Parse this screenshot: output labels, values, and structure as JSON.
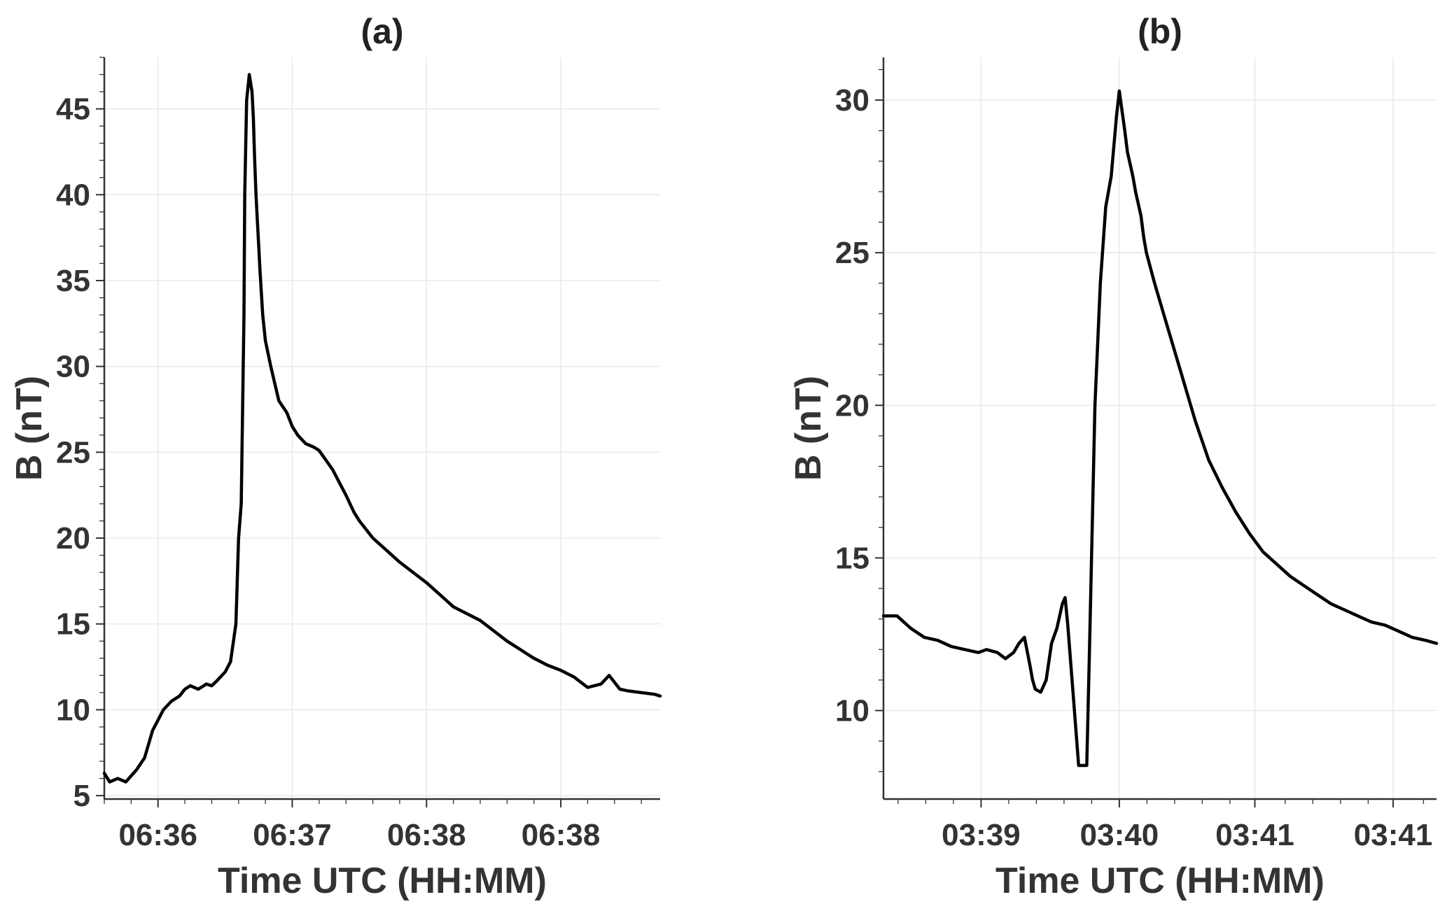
{
  "chart_data": [
    {
      "type": "line",
      "title": "(a)",
      "xlabel": "Time UTC (HH:MM)",
      "ylabel": "B (nT)",
      "grid": true,
      "xlim": [
        0,
        2.07
      ],
      "ylim": [
        4.8,
        48.0
      ],
      "x_ticks": [
        {
          "value": 0.2,
          "label": "06:36"
        },
        {
          "value": 0.7,
          "label": "06:37"
        },
        {
          "value": 1.2,
          "label": "06:38"
        },
        {
          "value": 1.7,
          "label": "06:38"
        }
      ],
      "y_ticks": [
        5,
        10,
        15,
        20,
        25,
        30,
        35,
        40,
        45
      ],
      "series": [
        {
          "x": [
            0,
            0.02,
            0.05,
            0.08,
            0.12,
            0.15,
            0.18,
            0.22,
            0.25,
            0.28,
            0.3,
            0.32,
            0.35,
            0.38,
            0.4,
            0.42,
            0.45,
            0.47,
            0.49,
            0.5,
            0.51,
            0.52,
            0.523,
            0.53,
            0.54,
            0.545,
            0.55,
            0.555,
            0.56,
            0.565,
            0.57,
            0.575,
            0.58,
            0.59,
            0.6,
            0.62,
            0.65,
            0.68,
            0.7,
            0.72,
            0.75,
            0.78,
            0.8,
            0.85,
            0.9,
            0.93,
            0.95,
            1.0,
            1.05,
            1.1,
            1.15,
            1.2,
            1.25,
            1.3,
            1.35,
            1.4,
            1.45,
            1.5,
            1.55,
            1.6,
            1.65,
            1.7,
            1.75,
            1.8,
            1.85,
            1.88,
            1.9,
            1.92,
            1.95,
            2.0,
            2.05,
            2.07
          ],
          "y": [
            6.3,
            5.8,
            6.0,
            5.8,
            6.5,
            7.2,
            8.8,
            10.0,
            10.5,
            10.8,
            11.2,
            11.4,
            11.2,
            11.5,
            11.4,
            11.7,
            12.2,
            12.8,
            15.0,
            20.0,
            22.0,
            33.0,
            40.0,
            45.5,
            47.0,
            46.5,
            46.0,
            44.5,
            42.0,
            40.0,
            38.5,
            37.0,
            35.5,
            33.0,
            31.5,
            30.0,
            28.0,
            27.3,
            26.5,
            26.0,
            25.5,
            25.3,
            25.1,
            24.0,
            22.5,
            21.5,
            21.0,
            20.0,
            19.3,
            18.6,
            18.0,
            17.4,
            16.7,
            16.0,
            15.6,
            15.2,
            14.6,
            14.0,
            13.5,
            13.0,
            12.6,
            12.3,
            11.9,
            11.3,
            11.5,
            12.0,
            11.6,
            11.2,
            11.1,
            11.0,
            10.9,
            10.8
          ]
        }
      ]
    },
    {
      "type": "line",
      "title": "(b)",
      "xlabel": "Time UTC (HH:MM)",
      "ylabel": "B (nT)",
      "grid": true,
      "xlim": [
        0,
        2.04
      ],
      "ylim": [
        7.1,
        31.4
      ],
      "x_ticks": [
        {
          "value": 0.36,
          "label": "03:39"
        },
        {
          "value": 0.87,
          "label": "03:40"
        },
        {
          "value": 1.37,
          "label": "03:41"
        },
        {
          "value": 1.88,
          "label": "03:41"
        }
      ],
      "y_ticks": [
        10,
        15,
        20,
        25,
        30
      ],
      "series": [
        {
          "x": [
            0,
            0.05,
            0.1,
            0.15,
            0.2,
            0.25,
            0.3,
            0.35,
            0.38,
            0.42,
            0.45,
            0.48,
            0.5,
            0.52,
            0.54,
            0.55,
            0.56,
            0.58,
            0.6,
            0.62,
            0.64,
            0.66,
            0.67,
            0.68,
            0.7,
            0.72,
            0.75,
            0.76,
            0.77,
            0.78,
            0.8,
            0.82,
            0.84,
            0.86,
            0.87,
            0.89,
            0.9,
            0.92,
            0.93,
            0.95,
            0.96,
            0.97,
            1.0,
            1.05,
            1.1,
            1.15,
            1.2,
            1.25,
            1.3,
            1.35,
            1.4,
            1.45,
            1.5,
            1.55,
            1.6,
            1.65,
            1.7,
            1.75,
            1.8,
            1.85,
            1.9,
            1.95,
            2.0,
            2.04
          ],
          "y": [
            13.1,
            13.1,
            12.7,
            12.4,
            12.3,
            12.1,
            12.0,
            11.9,
            12.0,
            11.9,
            11.7,
            11.9,
            12.2,
            12.4,
            11.5,
            11.0,
            10.7,
            10.6,
            11.0,
            12.2,
            12.7,
            13.5,
            13.7,
            12.8,
            10.5,
            8.2,
            8.2,
            12.0,
            16.0,
            20.0,
            24.0,
            26.5,
            27.5,
            29.5,
            30.3,
            29.0,
            28.3,
            27.5,
            27.0,
            26.2,
            25.5,
            25.0,
            24.0,
            22.5,
            21.0,
            19.5,
            18.2,
            17.3,
            16.5,
            15.8,
            15.2,
            14.8,
            14.4,
            14.1,
            13.8,
            13.5,
            13.3,
            13.1,
            12.9,
            12.8,
            12.6,
            12.4,
            12.3,
            12.2
          ]
        }
      ]
    }
  ]
}
